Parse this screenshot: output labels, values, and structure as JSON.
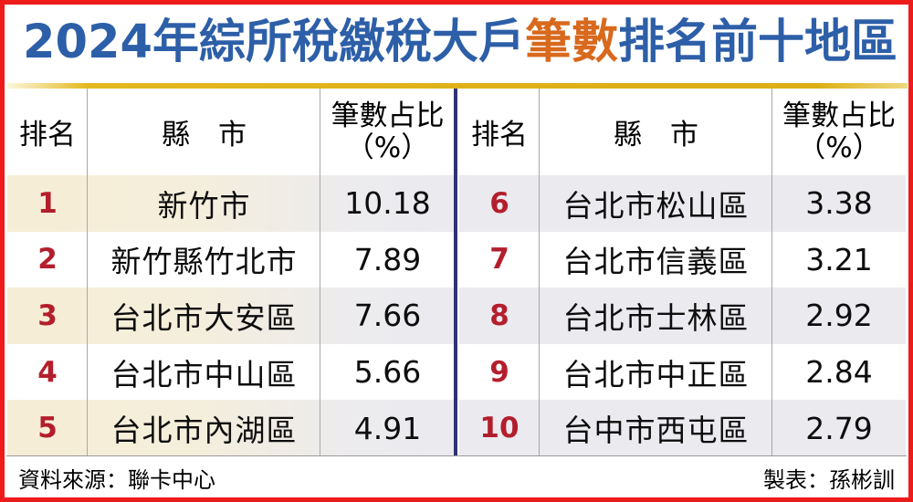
{
  "title": {
    "prefix": "2024年綜所稅繳稅大戶",
    "highlight": "筆數",
    "suffix": "排名前十地區"
  },
  "header": {
    "rank": "排名",
    "county": "縣　市",
    "ratio_line1": "筆數占比",
    "ratio_line2": "（%）"
  },
  "tables": [
    {
      "rows": [
        {
          "rank": "1",
          "county": "新竹市",
          "ratio": "10.18"
        },
        {
          "rank": "2",
          "county": "新竹縣竹北市",
          "ratio": "7.89"
        },
        {
          "rank": "3",
          "county": "台北市大安區",
          "ratio": "7.66"
        },
        {
          "rank": "4",
          "county": "台北市中山區",
          "ratio": "5.66"
        },
        {
          "rank": "5",
          "county": "台北市內湖區",
          "ratio": "4.91"
        }
      ]
    },
    {
      "rows": [
        {
          "rank": "6",
          "county": "台北市松山區",
          "ratio": "3.38"
        },
        {
          "rank": "7",
          "county": "台北市信義區",
          "ratio": "3.21"
        },
        {
          "rank": "8",
          "county": "台北市士林區",
          "ratio": "2.92"
        },
        {
          "rank": "9",
          "county": "台北市中正區",
          "ratio": "2.84"
        },
        {
          "rank": "10",
          "county": "台中市西屯區",
          "ratio": "2.79"
        }
      ]
    }
  ],
  "footer": {
    "source": "資料來源：聯卡中心",
    "credit": "製表：孫彬訓"
  },
  "colors": {
    "border_red": "#ee1b1b",
    "title_blue": "#2d5fa8",
    "highlight_orange": "#d8691d",
    "gold_line": "#dcb016",
    "divider_navy": "#2f3274",
    "rank_red": "#b41e2c",
    "shade_beige": "#f6edd5",
    "shade_gray": "#eaeaef"
  },
  "chart_data": {
    "type": "table",
    "title": "2024年綜所稅繳稅大戶筆數排名前十地區",
    "columns": [
      "排名",
      "縣市",
      "筆數占比（%）"
    ],
    "rows": [
      [
        1,
        "新竹市",
        10.18
      ],
      [
        2,
        "新竹縣竹北市",
        7.89
      ],
      [
        3,
        "台北市大安區",
        7.66
      ],
      [
        4,
        "台北市中山區",
        5.66
      ],
      [
        5,
        "台北市內湖區",
        4.91
      ],
      [
        6,
        "台北市松山區",
        3.38
      ],
      [
        7,
        "台北市信義區",
        3.21
      ],
      [
        8,
        "台北市士林區",
        2.92
      ],
      [
        9,
        "台北市中正區",
        2.84
      ],
      [
        10,
        "台中市西屯區",
        2.79
      ]
    ]
  }
}
